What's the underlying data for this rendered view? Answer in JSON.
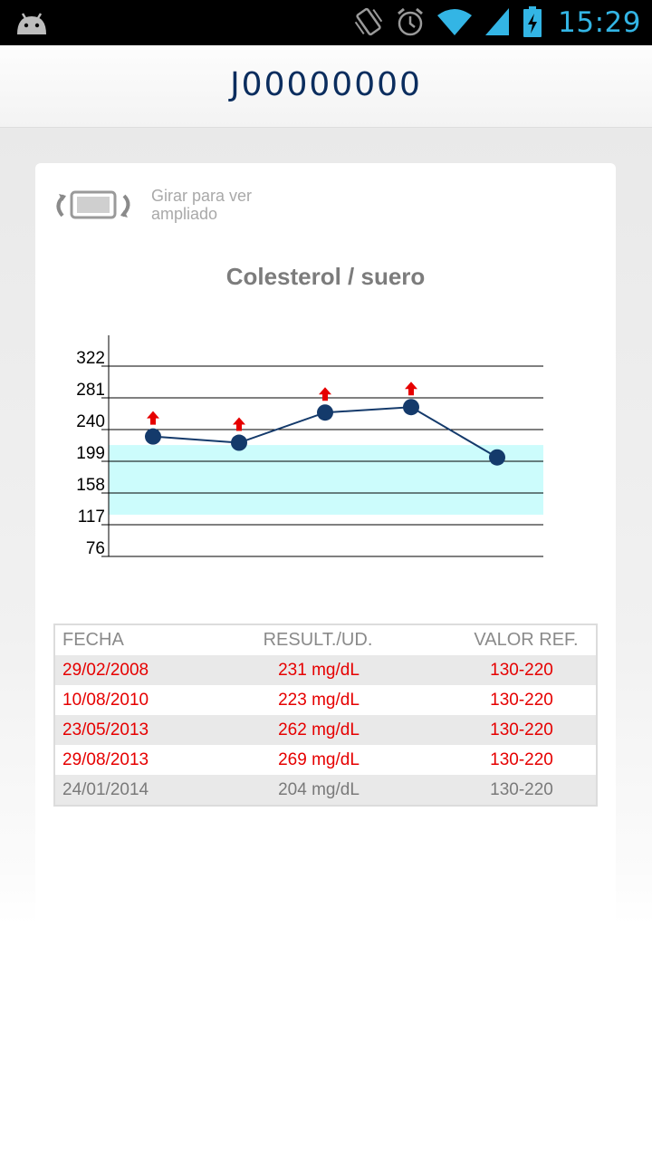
{
  "statusbar": {
    "time": "15:29",
    "icons": [
      "android-icon",
      "vibrate-icon",
      "alarm-icon",
      "wifi-icon",
      "signal-icon",
      "battery-charging-icon"
    ]
  },
  "header": {
    "title": "J00000000"
  },
  "rotate_hint": {
    "text": "Girar para ver ampliado",
    "icon": "rotate-phone-icon"
  },
  "chart_data": {
    "type": "line",
    "title": "Colesterol / suero",
    "xlabel": "",
    "ylabel": "",
    "y_ticks": [
      76,
      117,
      158,
      199,
      240,
      281,
      322
    ],
    "ylim": [
      76,
      322
    ],
    "reference_range": [
      130,
      220
    ],
    "series": [
      {
        "values": [
          231,
          223,
          262,
          269,
          204
        ],
        "flags": [
          "high",
          "high",
          "high",
          "high",
          ""
        ]
      }
    ],
    "colors": {
      "line": "#143a6b",
      "point": "#143a6b",
      "band": "#ccfcfc",
      "flag": "#e60000"
    },
    "grid": true
  },
  "table": {
    "headers": [
      "FECHA",
      "RESULT./UD.",
      "VALOR REF."
    ],
    "rows": [
      {
        "date": "29/02/2008",
        "result": "231 mg/dL",
        "ref": "130-220",
        "status": "high"
      },
      {
        "date": "10/08/2010",
        "result": "223 mg/dL",
        "ref": "130-220",
        "status": "high"
      },
      {
        "date": "23/05/2013",
        "result": "262 mg/dL",
        "ref": "130-220",
        "status": "high"
      },
      {
        "date": "29/08/2013",
        "result": "269 mg/dL",
        "ref": "130-220",
        "status": "high"
      },
      {
        "date": "24/01/2014",
        "result": "204 mg/dL",
        "ref": "130-220",
        "status": "normal"
      }
    ],
    "colors": {
      "high": "#e60000",
      "normal": "#7a7a7a",
      "stripe": "#e9e9e9"
    }
  }
}
